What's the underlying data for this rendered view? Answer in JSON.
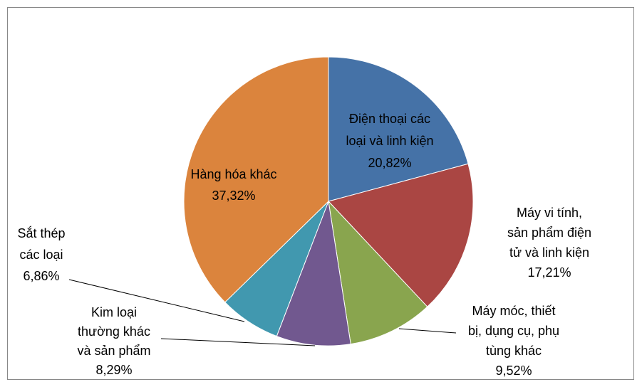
{
  "chart_data": {
    "type": "pie",
    "categories": [
      [
        "Điện thoại các",
        "loại và linh kiện"
      ],
      [
        "Máy vi tính,",
        "sản phẩm điện",
        "tử và linh kiện"
      ],
      [
        "Máy móc, thiết",
        "bị, dụng cụ, phụ",
        "tùng khác"
      ],
      [
        "Kim loại",
        "thường khác",
        "và sản phẩm"
      ],
      [
        "Sắt thép",
        "các loại"
      ],
      [
        "Hàng hóa khác"
      ]
    ],
    "values": [
      20.82,
      17.21,
      9.52,
      8.29,
      6.86,
      37.32
    ],
    "value_labels": [
      "20,82%",
      "17,21%",
      "9,52%",
      "8,29%",
      "6,86%",
      "37,32%"
    ],
    "colors": [
      "#4572a7",
      "#aa4643",
      "#89a54e",
      "#71588f",
      "#4198af",
      "#db843d"
    ]
  }
}
